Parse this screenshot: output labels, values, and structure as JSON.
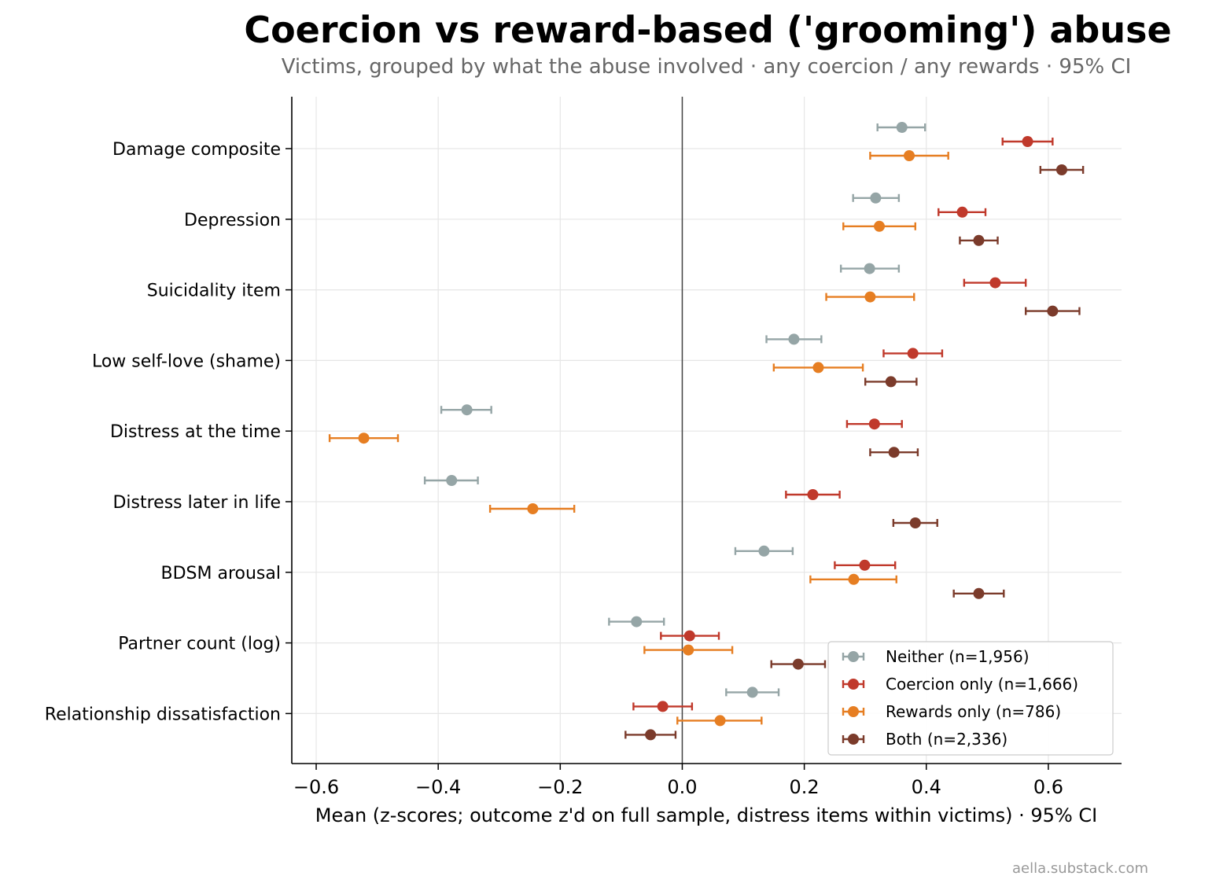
{
  "chart_data": {
    "type": "scatter",
    "title": "Coercion vs reward-based ('grooming') abuse",
    "subtitle": "Victims, grouped by what the abuse involved · any coercion / any rewards · 95% CI",
    "xlabel": "Mean (z-scores; outcome z'd on full sample, distress items within victims) · 95% CI",
    "credit": "aella.substack.com",
    "xlim": [
      -0.64,
      0.72
    ],
    "xticks": [
      {
        "value": -0.6,
        "label": "−0.6"
      },
      {
        "value": -0.4,
        "label": "−0.4"
      },
      {
        "value": -0.2,
        "label": "−0.2"
      },
      {
        "value": 0.0,
        "label": "0.0"
      },
      {
        "value": 0.2,
        "label": "0.2"
      },
      {
        "value": 0.4,
        "label": "0.4"
      },
      {
        "value": 0.6,
        "label": "0.6"
      }
    ],
    "grid": true,
    "legend_position": "bottom-right",
    "categories": [
      "Damage composite",
      "Depression",
      "Suicidality item",
      "Low self-love (shame)",
      "Distress at the time",
      "Distress later in life",
      "BDSM arousal",
      "Partner count (log)",
      "Relationship dissatisfaction"
    ],
    "series": [
      {
        "name": "Neither (n=1,956)",
        "color": "#95a5a6",
        "values": [
          0.36,
          0.317,
          0.307,
          0.183,
          -0.353,
          -0.378,
          0.134,
          -0.075,
          0.115
        ],
        "ci_low": [
          0.32,
          0.28,
          0.26,
          0.138,
          -0.395,
          -0.422,
          0.087,
          -0.12,
          0.072
        ],
        "ci_high": [
          0.398,
          0.355,
          0.355,
          0.228,
          -0.313,
          -0.335,
          0.181,
          -0.03,
          0.158
        ]
      },
      {
        "name": "Coercion only (n=1,666)",
        "color": "#c0392b",
        "values": [
          0.566,
          0.459,
          0.513,
          0.378,
          0.315,
          0.214,
          0.299,
          0.012,
          -0.032
        ],
        "ci_low": [
          0.525,
          0.42,
          0.462,
          0.33,
          0.27,
          0.17,
          0.25,
          -0.035,
          -0.08
        ],
        "ci_high": [
          0.607,
          0.497,
          0.563,
          0.426,
          0.36,
          0.258,
          0.349,
          0.06,
          0.016
        ]
      },
      {
        "name": "Rewards only (n=786)",
        "color": "#e67e22",
        "values": [
          0.372,
          0.323,
          0.308,
          0.223,
          -0.522,
          -0.245,
          0.281,
          0.01,
          0.062
        ],
        "ci_low": [
          0.308,
          0.264,
          0.236,
          0.15,
          -0.578,
          -0.315,
          0.21,
          -0.062,
          -0.008
        ],
        "ci_high": [
          0.436,
          0.382,
          0.38,
          0.296,
          -0.466,
          -0.177,
          0.351,
          0.082,
          0.13
        ]
      },
      {
        "name": "Both (n=2,336)",
        "color": "#7b3b2b",
        "values": [
          0.622,
          0.486,
          0.607,
          0.342,
          0.347,
          0.382,
          0.486,
          0.19,
          -0.052
        ],
        "ci_low": [
          0.587,
          0.455,
          0.563,
          0.3,
          0.308,
          0.346,
          0.445,
          0.146,
          -0.093
        ],
        "ci_high": [
          0.657,
          0.517,
          0.651,
          0.384,
          0.386,
          0.418,
          0.527,
          0.234,
          -0.011
        ]
      }
    ]
  }
}
